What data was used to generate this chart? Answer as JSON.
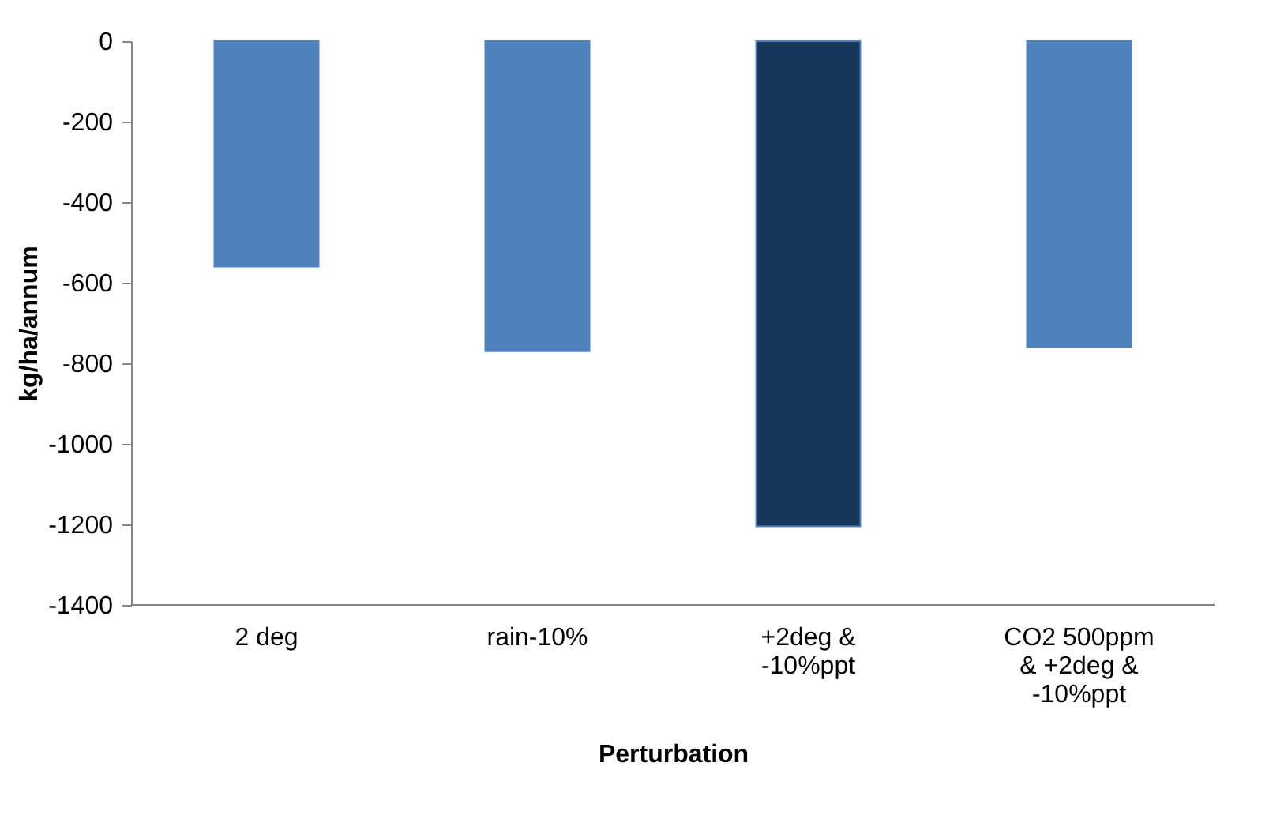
{
  "chart_data": {
    "type": "bar",
    "xlabel": "Perturbation",
    "ylabel": "kg/ha/annum",
    "categories": [
      "2 deg",
      "rain-10%",
      "+2deg & -10%ppt",
      "CO2 500ppm & +2deg & -10%ppt"
    ],
    "values": [
      -560,
      -770,
      -1205,
      -760
    ],
    "colors": [
      "#4f81bd",
      "#4f81bd",
      "#17375e",
      "#4f81bd"
    ],
    "ylim": [
      -1400,
      0
    ],
    "yticks": [
      0,
      -200,
      -400,
      -600,
      -800,
      -1000,
      -1200,
      -1400
    ],
    "grid": false
  }
}
